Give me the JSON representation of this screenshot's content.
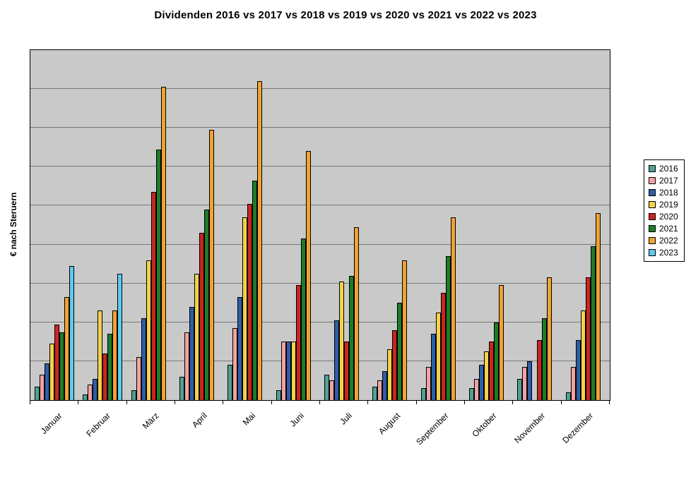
{
  "chart_data": {
    "type": "bar",
    "title": "Dividenden 2016 vs 2017 vs 2018 vs 2019 vs 2020 vs 2021 vs 2022 vs 2023",
    "ylabel": "€ nach Steruern",
    "xlabel": "",
    "categories": [
      "Januar",
      "Februar",
      "März",
      "April",
      "Mai",
      "Juni",
      "Juli",
      "August",
      "September",
      "Oktober",
      "November",
      "Dezember"
    ],
    "series": [
      {
        "name": "2016",
        "color": "#4DA294",
        "values": [
          35,
          15,
          25,
          60,
          90,
          25,
          65,
          35,
          30,
          30,
          55,
          20
        ]
      },
      {
        "name": "2017",
        "color": "#F2A2A2",
        "values": [
          65,
          40,
          110,
          175,
          185,
          150,
          50,
          50,
          85,
          55,
          85,
          85
        ]
      },
      {
        "name": "2018",
        "color": "#2F5EA8",
        "values": [
          95,
          55,
          210,
          240,
          265,
          150,
          205,
          75,
          170,
          90,
          100,
          155
        ]
      },
      {
        "name": "2019",
        "color": "#F2D24B",
        "values": [
          145,
          230,
          360,
          325,
          470,
          150,
          305,
          130,
          225,
          125,
          0,
          230
        ]
      },
      {
        "name": "2020",
        "color": "#CC2420",
        "values": [
          195,
          120,
          535,
          430,
          505,
          295,
          150,
          180,
          275,
          150,
          155,
          315
        ]
      },
      {
        "name": "2021",
        "color": "#1E7B2A",
        "values": [
          175,
          170,
          645,
          490,
          565,
          415,
          320,
          250,
          370,
          200,
          210,
          395
        ]
      },
      {
        "name": "2022",
        "color": "#F0A233",
        "values": [
          265,
          230,
          805,
          695,
          820,
          640,
          445,
          360,
          470,
          295,
          315,
          480
        ]
      },
      {
        "name": "2023",
        "color": "#5FC9EF",
        "values": [
          345,
          325,
          0,
          0,
          0,
          0,
          0,
          0,
          0,
          0,
          0,
          0
        ]
      }
    ],
    "ylim": [
      0,
      900
    ],
    "y_tick_labels_visible": false,
    "gridlines": "horizontal, every 100 units (unlabeled)",
    "legend_position": "right",
    "plot_background": "#C9C9C9",
    "value_note": "Y-axis shows no tick labels; values estimated on a 0-900 relative scale from the 9 gridline intervals"
  }
}
